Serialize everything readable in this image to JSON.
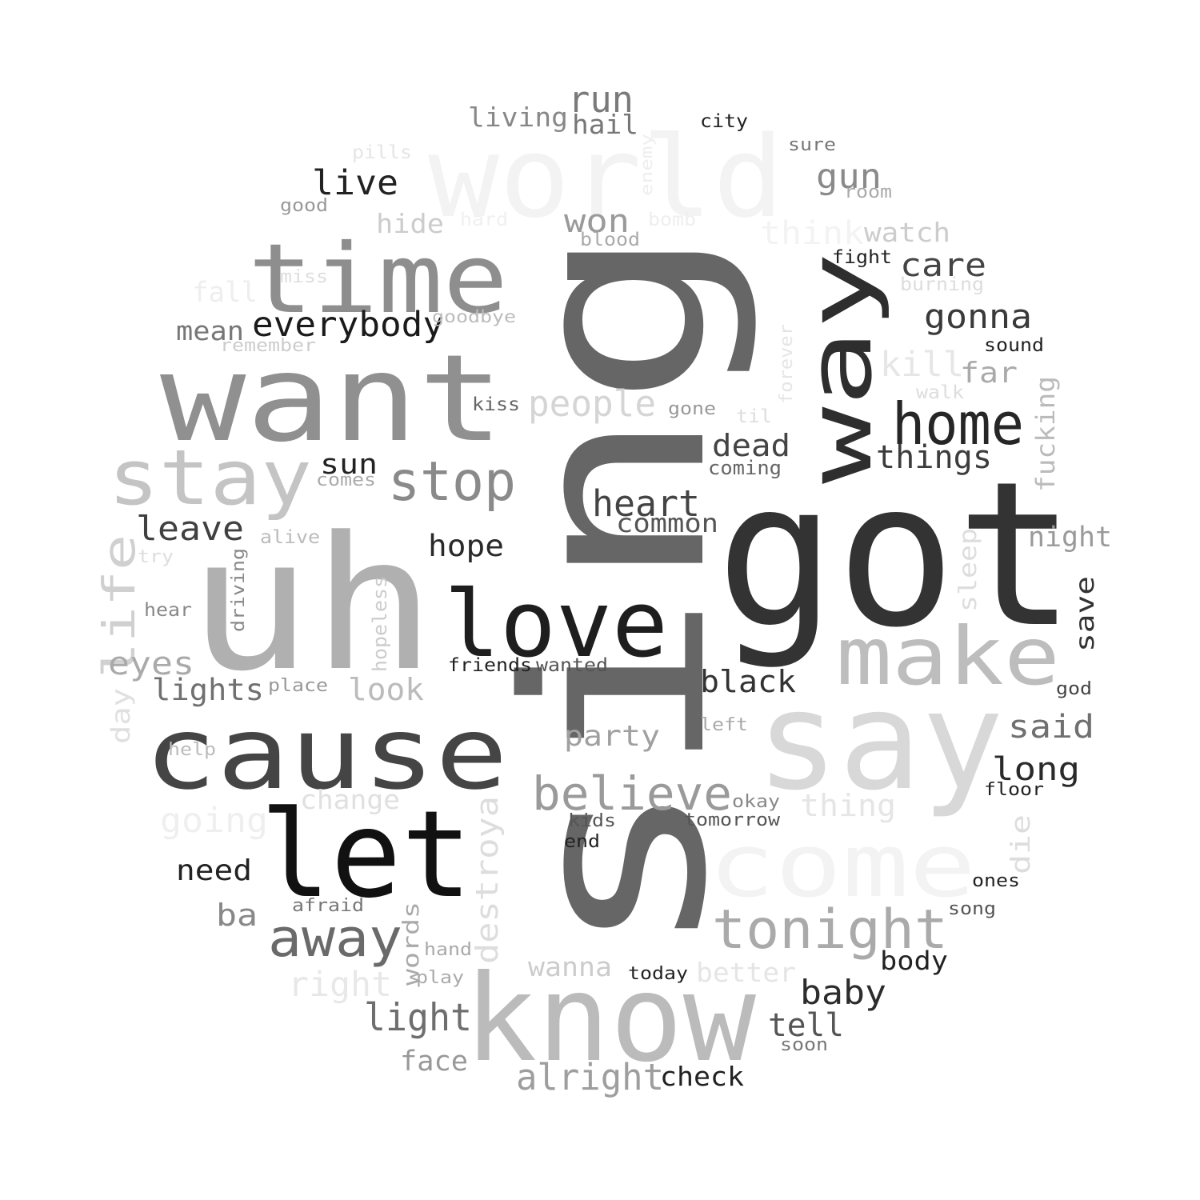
{
  "words": [
    {
      "text": "sing",
      "color": "#666666",
      "vertical": true
    },
    {
      "text": "got",
      "color": "#333333"
    },
    {
      "text": "uh",
      "color": "#b0b0b0"
    },
    {
      "text": "want",
      "color": "#909090"
    },
    {
      "text": "say",
      "color": "#d8d8d8"
    },
    {
      "text": "know",
      "color": "#bbbbbb"
    },
    {
      "text": "cause",
      "color": "#454545"
    },
    {
      "text": "world",
      "color": "#f3f3f3"
    },
    {
      "text": "time",
      "color": "#8e8e8e"
    },
    {
      "text": "let",
      "color": "#111111"
    },
    {
      "text": "love",
      "color": "#1e1e1e"
    },
    {
      "text": "make",
      "color": "#bdbdbd"
    },
    {
      "text": "come",
      "color": "#f3f3f3"
    },
    {
      "text": "way",
      "color": "#2e2e2e",
      "vertical": true
    },
    {
      "text": "stay",
      "color": "#c4c4c4"
    },
    {
      "text": "tonight",
      "color": "#aaaaaa"
    },
    {
      "text": "stop",
      "color": "#8a8a8a"
    },
    {
      "text": "home",
      "color": "#262626"
    },
    {
      "text": "away",
      "color": "#6a6a6a"
    },
    {
      "text": "believe",
      "color": "#9a9a9a"
    },
    {
      "text": "life",
      "color": "#d0d0d0",
      "vertical": true
    },
    {
      "text": "heart",
      "color": "#444444"
    },
    {
      "text": "everybody",
      "color": "#1a1a1a"
    },
    {
      "text": "people",
      "color": "#d5d5d5"
    },
    {
      "text": "light",
      "color": "#6e6e6e"
    },
    {
      "text": "alright",
      "color": "#9e9e9e"
    },
    {
      "text": "gonna",
      "color": "#3a3a3a"
    },
    {
      "text": "things",
      "color": "#3c3c3c"
    },
    {
      "text": "baby",
      "color": "#2c2c2c"
    },
    {
      "text": "black",
      "color": "#333333"
    },
    {
      "text": "lights",
      "color": "#707070"
    },
    {
      "text": "leave",
      "color": "#404040"
    },
    {
      "text": "going",
      "color": "#efefef"
    },
    {
      "text": "right",
      "color": "#e8e8e8"
    },
    {
      "text": "destroya",
      "color": "#dddddd",
      "vertical": true
    },
    {
      "text": "long",
      "color": "#2a2a2a"
    },
    {
      "text": "dead",
      "color": "#444444"
    },
    {
      "text": "hope",
      "color": "#2a2a2a"
    },
    {
      "text": "care",
      "color": "#444444"
    },
    {
      "text": "kill",
      "color": "#e6e6e6"
    },
    {
      "text": "run",
      "color": "#7a7a7a"
    },
    {
      "text": "live",
      "color": "#222222"
    },
    {
      "text": "gun",
      "color": "#8a8a8a"
    },
    {
      "text": "won",
      "color": "#9a9a9a"
    },
    {
      "text": "think",
      "color": "#f3f3f3"
    },
    {
      "text": "night",
      "color": "#9a9a9a"
    },
    {
      "text": "said",
      "color": "#707070"
    },
    {
      "text": "tell",
      "color": "#555555"
    },
    {
      "text": "need",
      "color": "#222222"
    },
    {
      "text": "party",
      "color": "#a0a0a0"
    },
    {
      "text": "look",
      "color": "#bbbbbb"
    },
    {
      "text": "face",
      "color": "#999999"
    },
    {
      "text": "eyes",
      "color": "#aaaaaa"
    },
    {
      "text": "check",
      "color": "#222222"
    },
    {
      "text": "fucking",
      "color": "#bbbbbb",
      "vertical": true
    },
    {
      "text": "thing",
      "color": "#e5e5e5"
    },
    {
      "text": "sun",
      "color": "#222222"
    },
    {
      "text": "living",
      "color": "#888888"
    },
    {
      "text": "hail",
      "color": "#777777"
    },
    {
      "text": "watch",
      "color": "#cccccc"
    },
    {
      "text": "far",
      "color": "#aaaaaa"
    },
    {
      "text": "save",
      "color": "#333333",
      "vertical": true
    },
    {
      "text": "hide",
      "color": "#cccccc"
    },
    {
      "text": "mean",
      "color": "#777777"
    },
    {
      "text": "fall",
      "color": "#eeeeee"
    },
    {
      "text": "common",
      "color": "#555555"
    },
    {
      "text": "change",
      "color": "#e0e0e0"
    },
    {
      "text": "wanna",
      "color": "#cccccc"
    },
    {
      "text": "ba",
      "color": "#888888"
    },
    {
      "text": "better",
      "color": "#e5e5e5"
    },
    {
      "text": "body",
      "color": "#222222"
    },
    {
      "text": "die",
      "color": "#dddddd",
      "vertical": true
    },
    {
      "text": "sleep",
      "color": "#dddddd",
      "vertical": true
    },
    {
      "text": "day",
      "color": "#e0e0e0",
      "vertical": true
    },
    {
      "text": "words",
      "color": "#aaaaaa",
      "vertical": true
    },
    {
      "text": "hopeless",
      "color": "#cccccc",
      "vertical": true
    },
    {
      "text": "driving",
      "color": "#888888",
      "vertical": true
    },
    {
      "text": "coming",
      "color": "#666666"
    },
    {
      "text": "sound",
      "color": "#222222"
    },
    {
      "text": "fight",
      "color": "#222222"
    },
    {
      "text": "burning",
      "color": "#dddddd"
    },
    {
      "text": "walk",
      "color": "#dddddd"
    },
    {
      "text": "city",
      "color": "#222222"
    },
    {
      "text": "sure",
      "color": "#777777"
    },
    {
      "text": "room",
      "color": "#aaaaaa"
    },
    {
      "text": "blood",
      "color": "#aaaaaa"
    },
    {
      "text": "bomb",
      "color": "#eeeeee"
    },
    {
      "text": "hard",
      "color": "#f0f0f0"
    },
    {
      "text": "enemy",
      "color": "#eeeeee",
      "vertical": true
    },
    {
      "text": "pills",
      "color": "#e5e5e5"
    },
    {
      "text": "good",
      "color": "#999999"
    },
    {
      "text": "miss",
      "color": "#dddddd"
    },
    {
      "text": "goodbye",
      "color": "#bbbbbb"
    },
    {
      "text": "remember",
      "color": "#cccccc"
    },
    {
      "text": "kiss",
      "color": "#666666"
    },
    {
      "text": "gone",
      "color": "#999999"
    },
    {
      "text": "til",
      "color": "#dddddd"
    },
    {
      "text": "forever",
      "color": "#e5e5e5",
      "vertical": true
    },
    {
      "text": "comes",
      "color": "#aaaaaa"
    },
    {
      "text": "alive",
      "color": "#bbbbbb"
    },
    {
      "text": "try",
      "color": "#dddddd"
    },
    {
      "text": "hear",
      "color": "#888888"
    },
    {
      "text": "friends",
      "color": "#222222"
    },
    {
      "text": "wanted",
      "color": "#555555"
    },
    {
      "text": "place",
      "color": "#999999"
    },
    {
      "text": "help",
      "color": "#bbbbbb"
    },
    {
      "text": "left",
      "color": "#aaaaaa"
    },
    {
      "text": "god",
      "color": "#444444"
    },
    {
      "text": "floor",
      "color": "#222222"
    },
    {
      "text": "okay",
      "color": "#888888"
    },
    {
      "text": "kids",
      "color": "#555555"
    },
    {
      "text": "tomorrow",
      "color": "#555555"
    },
    {
      "text": "end",
      "color": "#222222"
    },
    {
      "text": "afraid",
      "color": "#777777"
    },
    {
      "text": "ones",
      "color": "#222222"
    },
    {
      "text": "song",
      "color": "#555555"
    },
    {
      "text": "hand",
      "color": "#aaaaaa"
    },
    {
      "text": "play",
      "color": "#aaaaaa"
    },
    {
      "text": "today",
      "color": "#222222"
    },
    {
      "text": "soon",
      "color": "#777777"
    }
  ]
}
